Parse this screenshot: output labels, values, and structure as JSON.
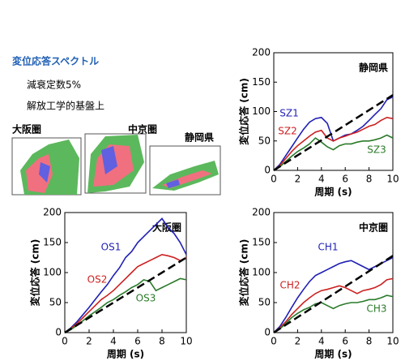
{
  "header": {
    "title": "変位応答スペクトル",
    "lines": [
      "減衰定数5%",
      "解放工学的基盤上"
    ]
  },
  "maps": {
    "labels": [
      "大阪圏",
      "中京圏",
      "静岡県"
    ]
  },
  "chart_data": [
    {
      "type": "line",
      "title": "静岡県",
      "xlabel": "周期 (s)",
      "ylabel": "変位応答 (cm)",
      "xlim": [
        0,
        10
      ],
      "xticks": [
        0,
        2,
        4,
        6,
        8,
        10
      ],
      "ylim": [
        0,
        200
      ],
      "yticks": [
        0,
        50,
        100,
        150,
        200
      ],
      "x": [
        0,
        0.5,
        1,
        1.5,
        2,
        2.5,
        3,
        3.5,
        4,
        4.5,
        5,
        5.5,
        6,
        6.5,
        7,
        7.5,
        8,
        8.5,
        9,
        9.5,
        10
      ],
      "series": [
        {
          "name": "SZ1",
          "color": "#1f1fb4",
          "values": [
            0,
            10,
            25,
            40,
            55,
            70,
            82,
            88,
            90,
            80,
            50,
            55,
            60,
            62,
            68,
            75,
            85,
            95,
            105,
            120,
            125
          ]
        },
        {
          "name": "SZ2",
          "color": "#cc2020",
          "values": [
            0,
            8,
            20,
            32,
            42,
            50,
            58,
            65,
            68,
            55,
            50,
            55,
            58,
            62,
            65,
            70,
            75,
            78,
            85,
            90,
            88
          ]
        },
        {
          "name": "SZ3",
          "color": "#2a7a2a",
          "values": [
            0,
            6,
            15,
            24,
            32,
            38,
            45,
            55,
            48,
            40,
            35,
            42,
            45,
            45,
            48,
            50,
            50,
            52,
            55,
            60,
            55
          ]
        },
        {
          "color": "#000000",
          "dash": true,
          "x": [
            0,
            10
          ],
          "values": [
            0,
            128
          ]
        }
      ]
    },
    {
      "type": "line",
      "title": "大阪圏",
      "xlabel": "周期 (s)",
      "ylabel": "変位応答 (cm)",
      "xlim": [
        0,
        10
      ],
      "xticks": [
        0,
        2,
        4,
        6,
        8,
        10
      ],
      "ylim": [
        0,
        200
      ],
      "yticks": [
        0,
        50,
        100,
        150,
        200
      ],
      "x": [
        0,
        0.5,
        1,
        1.5,
        2,
        2.5,
        3,
        3.5,
        4,
        4.5,
        5,
        5.5,
        6,
        6.5,
        7,
        7.5,
        8,
        8.5,
        9,
        9.5,
        10
      ],
      "series": [
        {
          "name": "OS1",
          "color": "#1f1fb4",
          "values": [
            0,
            8,
            18,
            30,
            42,
            55,
            68,
            80,
            95,
            108,
            125,
            135,
            150,
            160,
            170,
            180,
            190,
            175,
            165,
            150,
            130
          ]
        },
        {
          "name": "OS2",
          "color": "#cc2020",
          "values": [
            0,
            7,
            15,
            25,
            35,
            45,
            55,
            62,
            70,
            80,
            90,
            100,
            110,
            115,
            120,
            125,
            130,
            128,
            125,
            120,
            125
          ]
        },
        {
          "name": "OS3",
          "color": "#2a7a2a",
          "values": [
            0,
            5,
            12,
            20,
            28,
            35,
            42,
            50,
            55,
            62,
            68,
            75,
            80,
            88,
            85,
            70,
            75,
            80,
            85,
            90,
            88
          ]
        },
        {
          "color": "#000000",
          "dash": true,
          "x": [
            0,
            10
          ],
          "values": [
            0,
            125
          ]
        }
      ]
    },
    {
      "type": "line",
      "title": "中京圏",
      "xlabel": "周期 (s)",
      "ylabel": "変位応答 (cm)",
      "xlim": [
        0,
        10
      ],
      "xticks": [
        0,
        2,
        4,
        6,
        8,
        10
      ],
      "ylim": [
        0,
        200
      ],
      "yticks": [
        0,
        50,
        100,
        150,
        200
      ],
      "x": [
        0,
        0.5,
        1,
        1.5,
        2,
        2.5,
        3,
        3.5,
        4,
        4.5,
        5,
        5.5,
        6,
        6.5,
        7,
        7.5,
        8,
        8.5,
        9,
        9.5,
        10
      ],
      "series": [
        {
          "name": "CH1",
          "color": "#1f1fb4",
          "values": [
            0,
            10,
            25,
            42,
            58,
            72,
            85,
            95,
            100,
            105,
            110,
            115,
            118,
            120,
            115,
            110,
            105,
            110,
            115,
            120,
            125
          ]
        },
        {
          "name": "CH2",
          "color": "#cc2020",
          "values": [
            0,
            8,
            18,
            30,
            40,
            50,
            58,
            65,
            70,
            72,
            75,
            78,
            75,
            70,
            65,
            70,
            72,
            75,
            80,
            88,
            90
          ]
        },
        {
          "name": "CH3",
          "color": "#2a7a2a",
          "values": [
            0,
            6,
            15,
            25,
            32,
            38,
            42,
            48,
            50,
            45,
            40,
            45,
            48,
            50,
            50,
            52,
            55,
            55,
            58,
            62,
            60
          ]
        },
        {
          "color": "#000000",
          "dash": true,
          "x": [
            0,
            10
          ],
          "values": [
            0,
            128
          ]
        }
      ]
    }
  ]
}
